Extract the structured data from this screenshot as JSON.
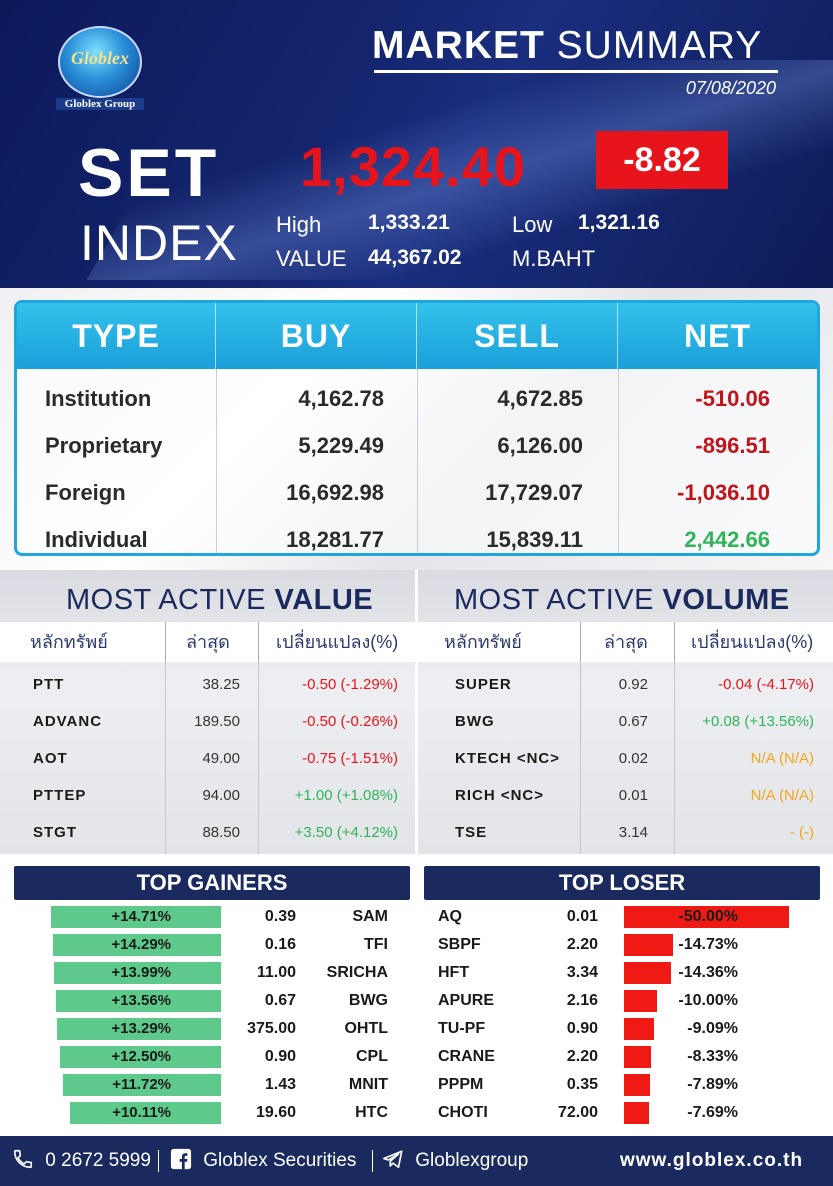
{
  "header": {
    "logo_text": "Globlex",
    "logo_sub": "Globlex Group",
    "title_bold": "MARKET",
    "title_rest": " SUMMARY",
    "date": "07/08/2020",
    "set_label": "SET",
    "index_label": "INDEX",
    "set_value": "1,324.40",
    "change": "-8.82",
    "high_label": "High",
    "high": "1,333.21",
    "low_label": "Low",
    "low": "1,321.16",
    "value_label": "VALUE",
    "value": "44,367.02",
    "unit": "M.BAHT"
  },
  "trading": {
    "headers": [
      "TYPE",
      "BUY",
      "SELL",
      "NET"
    ],
    "rows": [
      {
        "type": "Institution",
        "buy": "4,162.78",
        "sell": "4,672.85",
        "net": "-510.06",
        "net_color": "#c0141c"
      },
      {
        "type": "Proprietary",
        "buy": "5,229.49",
        "sell": "6,126.00",
        "net": "-896.51",
        "net_color": "#c0141c"
      },
      {
        "type": "Foreign",
        "buy": "16,692.98",
        "sell": "17,729.07",
        "net": "-1,036.10",
        "net_color": "#c0141c"
      },
      {
        "type": "Individual",
        "buy": "18,281.77",
        "sell": "15,839.11",
        "net": "2,442.66",
        "net_color": "#2fb45a"
      }
    ]
  },
  "active_value": {
    "title_light": "MOST ACTIVE ",
    "title_bold": "VALUE",
    "headers": [
      "หลักทรัพย์",
      "ล่าสุด",
      "เปลี่ยนแปลง(%)"
    ],
    "rows": [
      {
        "symbol": "PTT",
        "last": "38.25",
        "change": "-0.50 (-1.29%)",
        "color": "#e8141c"
      },
      {
        "symbol": "ADVANC",
        "last": "189.50",
        "change": "-0.50 (-0.26%)",
        "color": "#e8141c"
      },
      {
        "symbol": "AOT",
        "last": "49.00",
        "change": "-0.75 (-1.51%)",
        "color": "#e8141c"
      },
      {
        "symbol": "PTTEP",
        "last": "94.00",
        "change": "+1.00 (+1.08%)",
        "color": "#2fb45a"
      },
      {
        "symbol": "STGT",
        "last": "88.50",
        "change": "+3.50 (+4.12%)",
        "color": "#2fb45a"
      }
    ]
  },
  "active_volume": {
    "title_light": "MOST ACTIVE ",
    "title_bold": "VOLUME",
    "headers": [
      "หลักทรัพย์",
      "ล่าสุด",
      "เปลี่ยนแปลง(%)"
    ],
    "rows": [
      {
        "symbol": "SUPER",
        "last": "0.92",
        "change": "-0.04 (-4.17%)",
        "color": "#e8141c"
      },
      {
        "symbol": "BWG",
        "last": "0.67",
        "change": "+0.08 (+13.56%)",
        "color": "#2fb45a"
      },
      {
        "symbol": "KTECH <NC>",
        "last": "0.02",
        "change": "N/A (N/A)",
        "color": "#f0a81c"
      },
      {
        "symbol": "RICH <NC>",
        "last": "0.01",
        "change": "N/A (N/A)",
        "color": "#f0a81c"
      },
      {
        "symbol": "TSE",
        "last": "3.14",
        "change": "- (-)",
        "color": "#f0a81c"
      }
    ]
  },
  "top_gainers": {
    "title": "TOP GAINERS",
    "rows": [
      {
        "pct": "+14.71%",
        "price": "0.39",
        "symbol": "SAM",
        "pct_value": 14.71
      },
      {
        "pct": "+14.29%",
        "price": "0.16",
        "symbol": "TFI",
        "pct_value": 14.29
      },
      {
        "pct": "+13.99%",
        "price": "11.00",
        "symbol": "SRICHA",
        "pct_value": 13.99
      },
      {
        "pct": "+13.56%",
        "price": "0.67",
        "symbol": "BWG",
        "pct_value": 13.56
      },
      {
        "pct": "+13.29%",
        "price": "375.00",
        "symbol": "OHTL",
        "pct_value": 13.29
      },
      {
        "pct": "+12.50%",
        "price": "0.90",
        "symbol": "CPL",
        "pct_value": 12.5
      },
      {
        "pct": "+11.72%",
        "price": "1.43",
        "symbol": "MNIT",
        "pct_value": 11.72
      },
      {
        "pct": "+10.11%",
        "price": "19.60",
        "symbol": "HTC",
        "pct_value": 10.11
      }
    ]
  },
  "top_loser": {
    "title": "TOP LOSER",
    "rows": [
      {
        "symbol": "AQ",
        "price": "0.01",
        "pct": "-50.00%",
        "pct_value": 50.0
      },
      {
        "symbol": "SBPF",
        "price": "2.20",
        "pct": "-14.73%",
        "pct_value": 14.73
      },
      {
        "symbol": "HFT",
        "price": "3.34",
        "pct": "-14.36%",
        "pct_value": 14.36
      },
      {
        "symbol": "APURE",
        "price": "2.16",
        "pct": "-10.00%",
        "pct_value": 10.0
      },
      {
        "symbol": "TU-PF",
        "price": "0.90",
        "pct": "-9.09%",
        "pct_value": 9.09
      },
      {
        "symbol": "CRANE",
        "price": "2.20",
        "pct": "-8.33%",
        "pct_value": 8.33
      },
      {
        "symbol": "PPPM",
        "price": "0.35",
        "pct": "-7.89%",
        "pct_value": 7.89
      },
      {
        "symbol": "CHOTI",
        "price": "72.00",
        "pct": "-7.69%",
        "pct_value": 7.69
      }
    ]
  },
  "footer": {
    "phone_icon": "phone-icon",
    "phone": "0 2672 5999",
    "facebook_icon": "facebook-icon",
    "facebook": "Globlex Securities",
    "telegram_icon": "telegram-icon",
    "telegram": "Globlexgroup",
    "website": "www.globlex.co.th"
  }
}
